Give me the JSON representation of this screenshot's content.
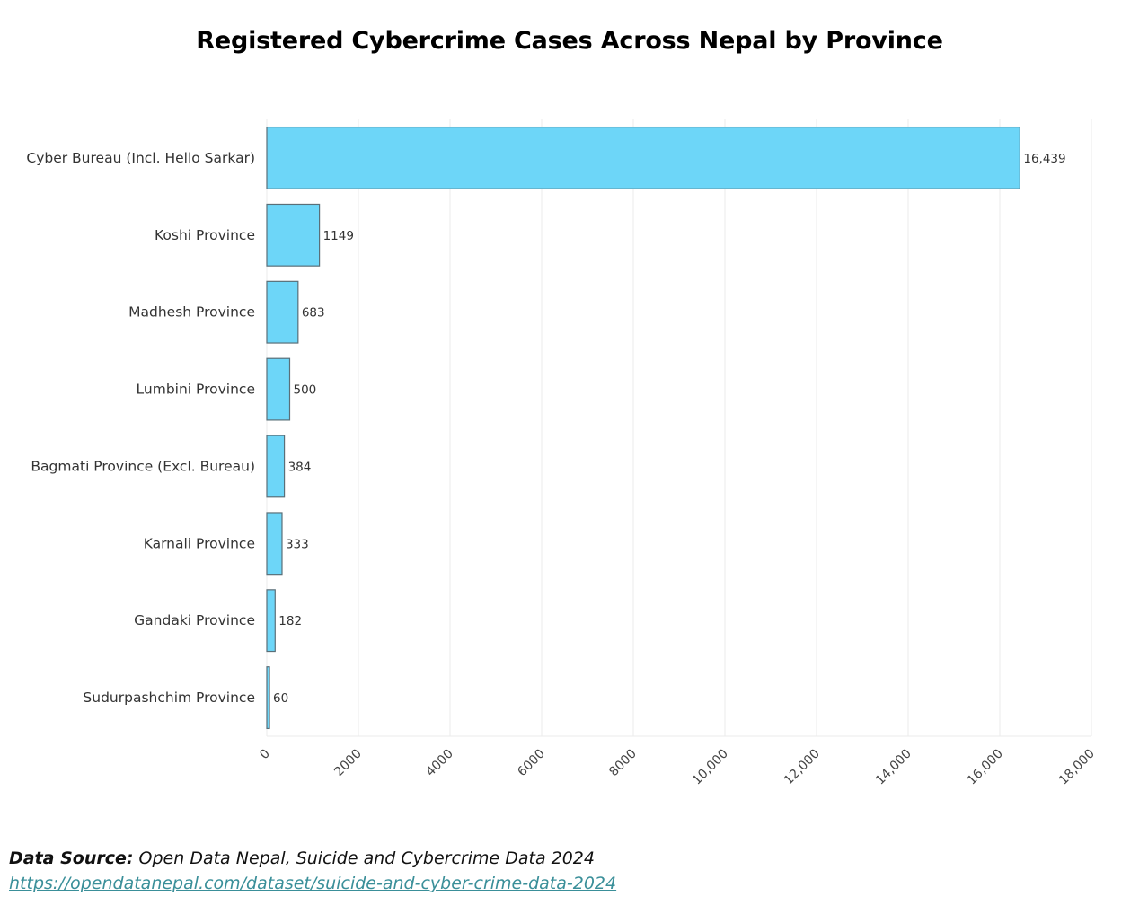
{
  "chart_data": {
    "type": "bar",
    "orientation": "horizontal",
    "title": "Registered Cybercrime Cases Across Nepal by Province",
    "xlabel": "",
    "ylabel": "",
    "categories": [
      "Cyber Bureau (Incl. Hello Sarkar)",
      "Koshi Province",
      "Madhesh Province",
      "Lumbini Province",
      "Bagmati Province (Excl. Bureau)",
      "Karnali Province",
      "Gandaki Province",
      "Sudurpashchim Province"
    ],
    "values": [
      16439,
      1149,
      683,
      500,
      384,
      333,
      182,
      60
    ],
    "value_labels": [
      "16,439",
      "1149",
      "683",
      "500",
      "384",
      "333",
      "182",
      "60"
    ],
    "xlim": [
      0,
      18000
    ],
    "xticks": [
      0,
      2000,
      4000,
      6000,
      8000,
      10000,
      12000,
      14000,
      16000,
      18000
    ],
    "xtick_labels": [
      "0",
      "2000",
      "4000",
      "6000",
      "8000",
      "10,000",
      "12,000",
      "14,000",
      "16,000",
      "18,000"
    ],
    "grid": true,
    "legend": "none",
    "bar_color": "#6dd6f8",
    "bar_edge_color": "#5a6f78"
  },
  "footer": {
    "source_label": "Data Source:",
    "source_text": " Open Data Nepal, Suicide and Cybercrime Data 2024",
    "source_url": "https://opendatanepal.com/dataset/suicide-and-cyber-crime-data-2024"
  }
}
